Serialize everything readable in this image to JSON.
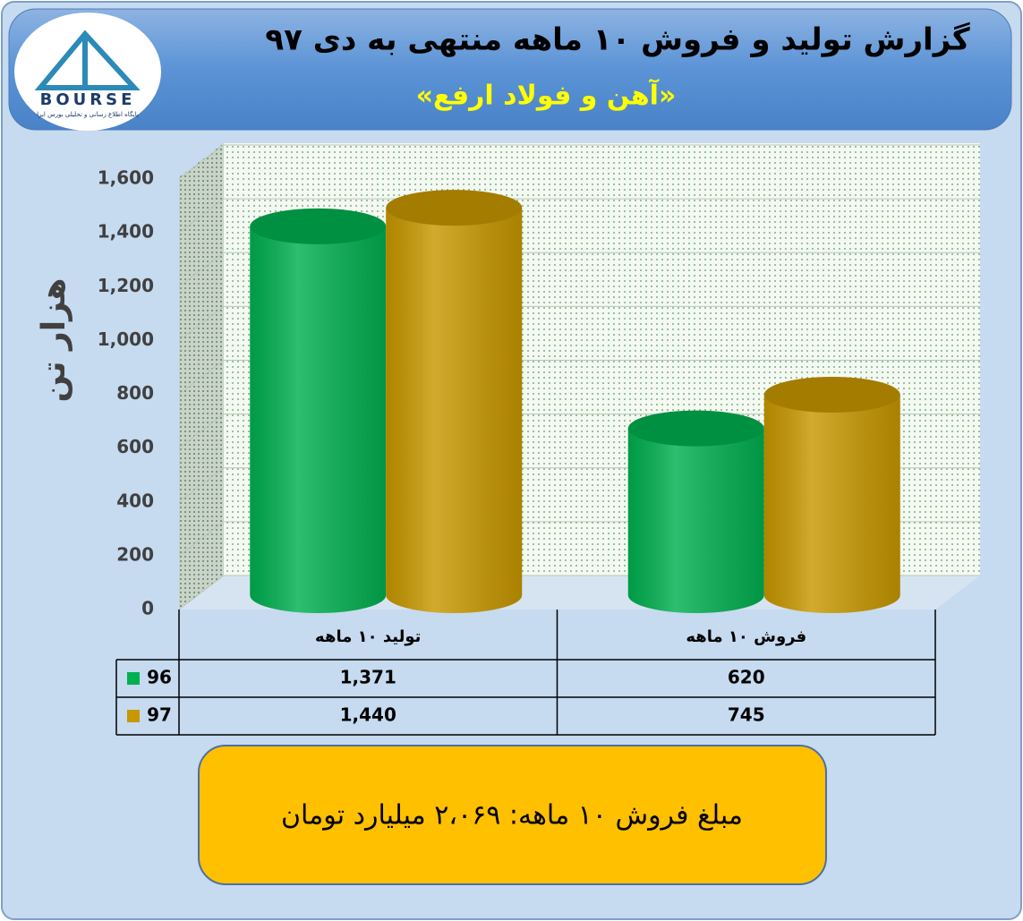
{
  "logo": {
    "text": "BOURSE",
    "caption": "پایگاه اطلاع رسانی و تحلیلی بورس ایرا"
  },
  "chart_data": {
    "type": "bar",
    "title": "گزارش تولید و فروش ۱۰ ماهه منتهی به دی ۹۷",
    "subtitle": "«آهن و فولاد ارفع»",
    "y_label": "هزار تن",
    "categories": [
      "تولید ۱۰ ماهه",
      "فروش ۱۰ ماهه"
    ],
    "series": [
      {
        "name": "96",
        "color": "#00b050",
        "values": [
          1371,
          620
        ],
        "value_labels": [
          "1,371",
          "620"
        ]
      },
      {
        "name": "97",
        "color": "#c89800",
        "values": [
          1440,
          745
        ],
        "value_labels": [
          "1,440",
          "745"
        ]
      }
    ],
    "ylim": [
      0,
      1600
    ],
    "yticks": [
      0,
      200,
      400,
      600,
      800,
      {
        "value": 1000,
        "label": "1,000"
      },
      {
        "value": 1200,
        "label": "1,200"
      },
      {
        "value": 1400,
        "label": "1,400"
      },
      {
        "value": 1600,
        "label": "1,600"
      }
    ],
    "grid": true,
    "note": "مبلغ فروش ۱۰ ماهه: ۲،۰۶۹ میلیارد تومان"
  }
}
